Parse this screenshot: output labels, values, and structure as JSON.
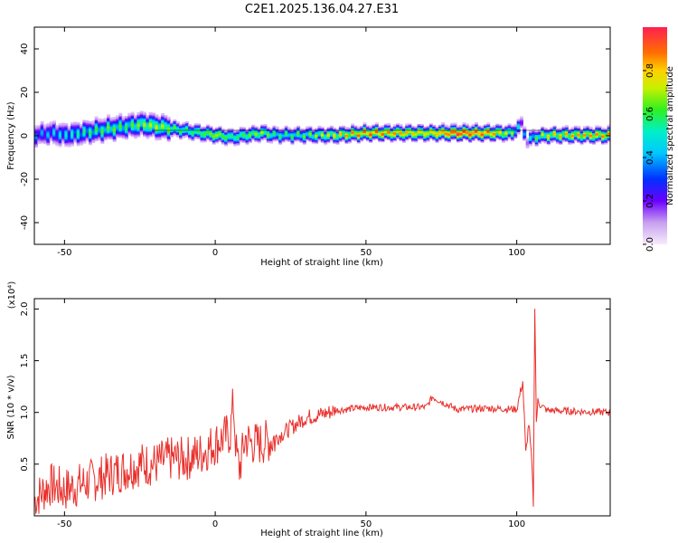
{
  "title": "C2E1.2025.136.04.27.E31",
  "colors": {
    "trace": "#e8302c",
    "frame": "#000000"
  },
  "chart_data": [
    {
      "type": "heatmap",
      "title": "C2E1.2025.136.04.27.E31",
      "xlabel": "Height of straight line (km)",
      "ylabel": "Frequency (Hz)",
      "xlim": [
        -60,
        131
      ],
      "ylim": [
        -50,
        50
      ],
      "x_ticks": [
        -50,
        0,
        50,
        100
      ],
      "y_ticks": [
        -40,
        -20,
        0,
        20,
        40
      ],
      "colorbar": {
        "label": "Normalized spectral amplitude",
        "range": [
          0.0,
          1.0
        ],
        "ticks": [
          "0.0",
          "0.2",
          "0.4",
          "0.6",
          "0.8"
        ]
      },
      "ridge": {
        "x": [
          -60,
          -55,
          -50,
          -45,
          -40,
          -35,
          -30,
          -25,
          -20,
          -15,
          -10,
          -5,
          0,
          5,
          10,
          15,
          20,
          30,
          40,
          50,
          60,
          70,
          80,
          90,
          98,
          101,
          103,
          105,
          110,
          120,
          131
        ],
        "freq": [
          0,
          1,
          0,
          1,
          2,
          3,
          4,
          5,
          4,
          3,
          2,
          1,
          0,
          -1,
          0,
          1,
          0,
          0,
          0,
          1,
          1,
          1,
          1,
          1,
          1,
          5,
          -3,
          -1,
          0,
          0,
          0
        ],
        "amp": [
          0.3,
          0.35,
          0.4,
          0.45,
          0.5,
          0.55,
          0.5,
          0.6,
          0.65,
          0.6,
          0.55,
          0.6,
          0.7,
          0.55,
          0.6,
          0.65,
          0.5,
          0.55,
          0.7,
          0.85,
          0.8,
          0.75,
          0.95,
          0.85,
          0.6,
          0.3,
          0.25,
          0.5,
          0.7,
          0.75,
          0.8
        ]
      }
    },
    {
      "type": "line",
      "xlabel": "Height of straight line (km)",
      "ylabel": "SNR (10 * v/v)",
      "y_multiplier": "(x10⁴)",
      "xlim": [
        -60,
        131
      ],
      "ylim": [
        0.0,
        2.1
      ],
      "x_ticks": [
        -50,
        0,
        50,
        100
      ],
      "y_ticks": [
        0.5,
        1.0,
        1.5,
        2.0
      ],
      "series": [
        {
          "x": [
            -60,
            -55,
            -50,
            -45,
            -40,
            -35,
            -30,
            -25,
            -20,
            -15,
            -10,
            -5,
            0,
            5,
            6,
            7,
            8,
            10,
            12,
            15,
            20,
            25,
            30,
            35,
            40,
            50,
            60,
            70,
            72,
            80,
            90,
            100,
            102,
            103,
            104,
            105,
            105.5,
            106,
            106.5,
            107,
            110,
            120,
            131
          ],
          "y": [
            0.15,
            0.3,
            0.25,
            0.3,
            0.35,
            0.4,
            0.45,
            0.5,
            0.5,
            0.55,
            0.55,
            0.6,
            0.7,
            0.8,
            1.1,
            0.6,
            0.45,
            0.75,
            0.7,
            0.7,
            0.75,
            0.85,
            0.95,
            0.98,
            1.02,
            1.05,
            1.05,
            1.05,
            1.15,
            1.03,
            1.04,
            1.03,
            1.3,
            0.6,
            0.9,
            0.5,
            0.12,
            2.05,
            0.9,
            1.1,
            1.02,
            1.01,
            1.0
          ]
        }
      ]
    }
  ]
}
